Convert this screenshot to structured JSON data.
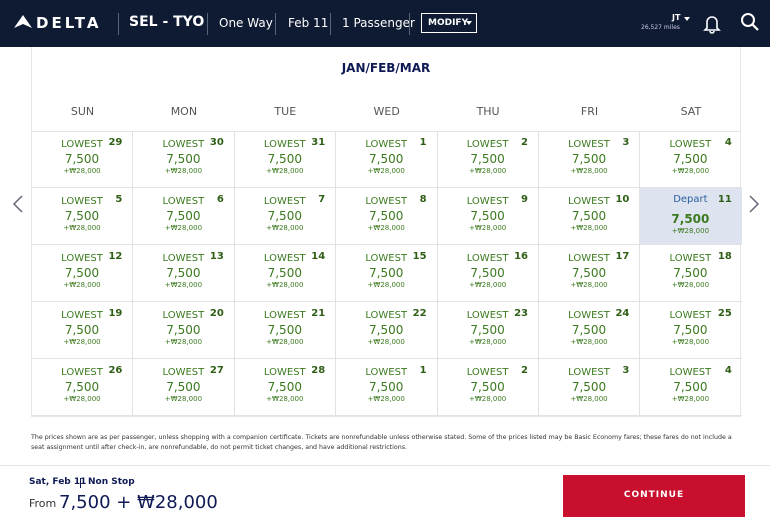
{
  "header": {
    "brand": "DELTA",
    "route": "SEL - TYO",
    "trip_type": "One Way",
    "date": "Feb 11",
    "passengers": "1 Passenger",
    "modify": "MODIFY",
    "user": "JT",
    "miles": "26,527 miles"
  },
  "calendar": {
    "title": "JAN/FEB/MAR",
    "weekdays": [
      "SUN",
      "MON",
      "TUE",
      "WED",
      "THU",
      "FRI",
      "SAT"
    ],
    "weeks": [
      [
        {
          "label": "LOWEST",
          "day": 29,
          "miles": "7,500",
          "fee": "+₩28,000"
        },
        {
          "label": "LOWEST",
          "day": 30,
          "miles": "7,500",
          "fee": "+₩28,000"
        },
        {
          "label": "LOWEST",
          "day": 31,
          "miles": "7,500",
          "fee": "+₩28,000"
        },
        {
          "label": "LOWEST",
          "day": 1,
          "miles": "7,500",
          "fee": "+₩28,000"
        },
        {
          "label": "LOWEST",
          "day": 2,
          "miles": "7,500",
          "fee": "+₩28,000"
        },
        {
          "label": "LOWEST",
          "day": 3,
          "miles": "7,500",
          "fee": "+₩28,000"
        },
        {
          "label": "LOWEST",
          "day": 4,
          "miles": "7,500",
          "fee": "+₩28,000"
        }
      ],
      [
        {
          "label": "LOWEST",
          "day": 5,
          "miles": "7,500",
          "fee": "+₩28,000"
        },
        {
          "label": "LOWEST",
          "day": 6,
          "miles": "7,500",
          "fee": "+₩28,000"
        },
        {
          "label": "LOWEST",
          "day": 7,
          "miles": "7,500",
          "fee": "+₩28,000"
        },
        {
          "label": "LOWEST",
          "day": 8,
          "miles": "7,500",
          "fee": "+₩28,000"
        },
        {
          "label": "LOWEST",
          "day": 9,
          "miles": "7,500",
          "fee": "+₩28,000"
        },
        {
          "label": "LOWEST",
          "day": 10,
          "miles": "7,500",
          "fee": "+₩28,000"
        },
        {
          "label": "Depart",
          "day": 11,
          "miles": "7,500",
          "fee": "+₩28,000",
          "selected": true
        }
      ],
      [
        {
          "label": "LOWEST",
          "day": 12,
          "miles": "7,500",
          "fee": "+₩28,000"
        },
        {
          "label": "LOWEST",
          "day": 13,
          "miles": "7,500",
          "fee": "+₩28,000"
        },
        {
          "label": "LOWEST",
          "day": 14,
          "miles": "7,500",
          "fee": "+₩28,000"
        },
        {
          "label": "LOWEST",
          "day": 15,
          "miles": "7,500",
          "fee": "+₩28,000"
        },
        {
          "label": "LOWEST",
          "day": 16,
          "miles": "7,500",
          "fee": "+₩28,000"
        },
        {
          "label": "LOWEST",
          "day": 17,
          "miles": "7,500",
          "fee": "+₩28,000"
        },
        {
          "label": "LOWEST",
          "day": 18,
          "miles": "7,500",
          "fee": "+₩28,000"
        }
      ],
      [
        {
          "label": "LOWEST",
          "day": 19,
          "miles": "7,500",
          "fee": "+₩28,000"
        },
        {
          "label": "LOWEST",
          "day": 20,
          "miles": "7,500",
          "fee": "+₩28,000"
        },
        {
          "label": "LOWEST",
          "day": 21,
          "miles": "7,500",
          "fee": "+₩28,000"
        },
        {
          "label": "LOWEST",
          "day": 22,
          "miles": "7,500",
          "fee": "+₩28,000"
        },
        {
          "label": "LOWEST",
          "day": 23,
          "miles": "7,500",
          "fee": "+₩28,000"
        },
        {
          "label": "LOWEST",
          "day": 24,
          "miles": "7,500",
          "fee": "+₩28,000"
        },
        {
          "label": "LOWEST",
          "day": 25,
          "miles": "7,500",
          "fee": "+₩28,000"
        }
      ],
      [
        {
          "label": "LOWEST",
          "day": 26,
          "miles": "7,500",
          "fee": "+₩28,000"
        },
        {
          "label": "LOWEST",
          "day": 27,
          "miles": "7,500",
          "fee": "+₩28,000"
        },
        {
          "label": "LOWEST",
          "day": 28,
          "miles": "7,500",
          "fee": "+₩28,000"
        },
        {
          "label": "LOWEST",
          "day": 1,
          "miles": "7,500",
          "fee": "+₩28,000"
        },
        {
          "label": "LOWEST",
          "day": 2,
          "miles": "7,500",
          "fee": "+₩28,000"
        },
        {
          "label": "LOWEST",
          "day": 3,
          "miles": "7,500",
          "fee": "+₩28,000"
        },
        {
          "label": "LOWEST",
          "day": 4,
          "miles": "7,500",
          "fee": "+₩28,000"
        }
      ]
    ]
  },
  "disclaimer": "The prices shown are as per passenger, unless shopping with a companion certificate. Tickets are nonrefundable unless otherwise stated. Some of the prices listed may be Basic Economy fares; these fares do not include a seat assignment until after check-in, are nonrefundable, do not permit ticket changes, and have additional restrictions.",
  "footer": {
    "date": "Sat, Feb 11",
    "stop": "Non Stop",
    "from": "From",
    "price": "7,500 + ₩28,000",
    "continue": "CONTINUE"
  }
}
